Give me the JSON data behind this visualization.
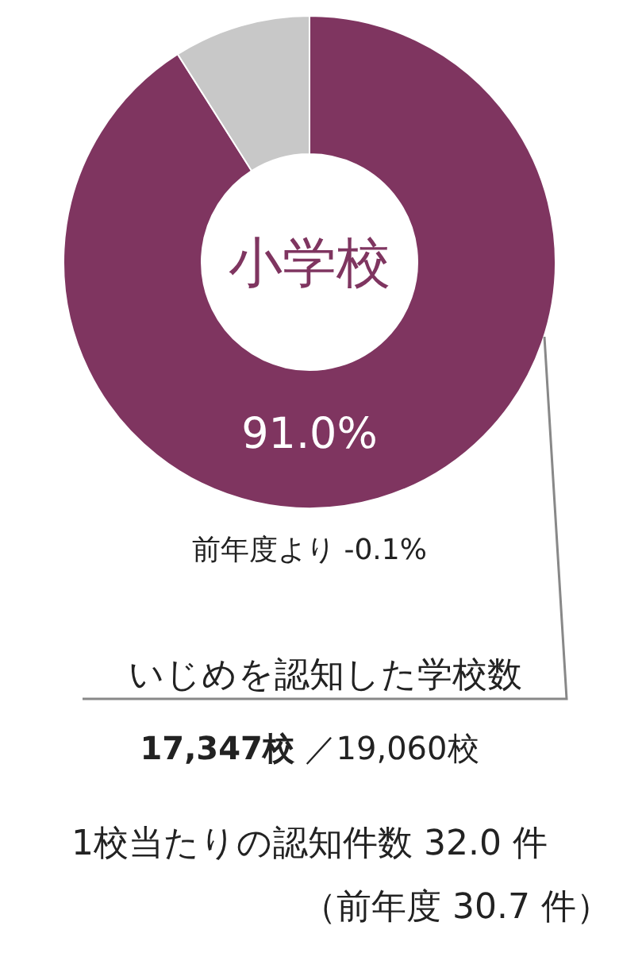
{
  "chart_data": {
    "type": "donut",
    "title": "小学校",
    "categories": [
      null,
      null
    ],
    "values": [
      91.0,
      9.0
    ],
    "colors": [
      "#7f3560",
      "#c8c8c8"
    ],
    "value_labels": [
      "91.0%",
      null
    ],
    "annotations": [
      "前年度より  -0.1%",
      "いじめを認知した学校数",
      "**17,347校** ／19,060校",
      "1校当たりの認知件数  32.0 件",
      "（前年度  30.7 件）"
    ]
  }
}
